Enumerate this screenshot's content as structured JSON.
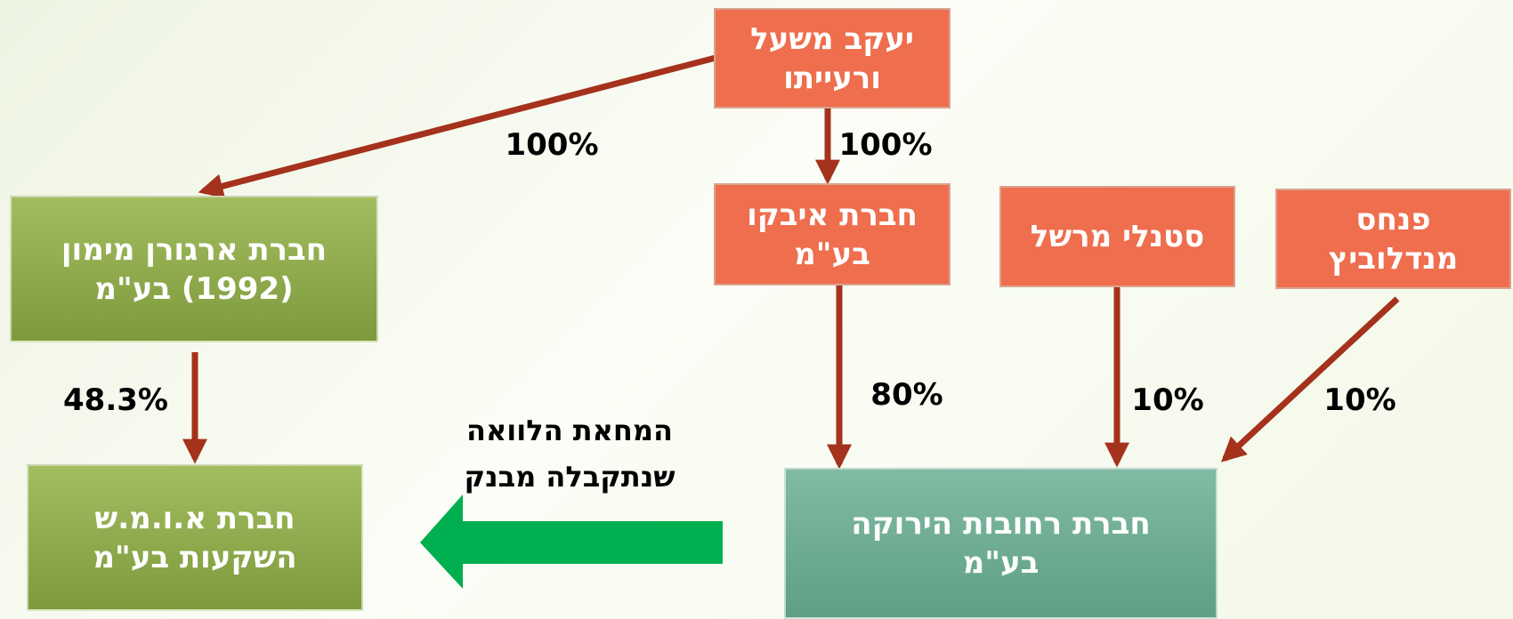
{
  "nodes": [
    {
      "lines": [
        "יעקב משעל",
        "ורעייתו"
      ]
    },
    {
      "lines": [
        "חברת איבקו",
        "בע\"מ"
      ]
    },
    {
      "lines": [
        "סטנלי מרשל"
      ]
    },
    {
      "lines": [
        "פנחס",
        "מנדלוביץ"
      ]
    },
    {
      "lines": [
        "חברת ארגורן מימון",
        "(1992) בע\"מ"
      ]
    },
    {
      "lines": [
        "חברת רחובות הירוקה",
        "בע\"מ"
      ]
    },
    {
      "lines": [
        "חברת א.ו.מ.ש",
        "השקעות בע\"מ"
      ]
    }
  ],
  "edges": [
    {
      "label": "100%"
    },
    {
      "label": "100%"
    },
    {
      "label": "80%"
    },
    {
      "label": "10%"
    },
    {
      "label": "10%"
    },
    {
      "label": "48.3%"
    }
  ],
  "loan": {
    "lines": [
      "המחאת הלוואה",
      "שנתקבלה מבנק"
    ]
  }
}
